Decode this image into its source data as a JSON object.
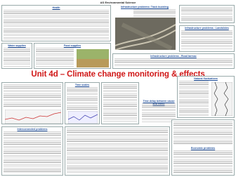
{
  "header": {
    "title": "AS Environmental Science"
  },
  "title": "Unit 4d – Climate change monitoring & effects",
  "sections": [
    {
      "heading": "Health"
    },
    {
      "heading": "Infrastructure problems: Track buckling"
    },
    {
      "heading": "Infrastructure problems : Landslides"
    },
    {
      "heading": "Water supplies"
    },
    {
      "heading": "Food supplies"
    },
    {
      "heading": "Infrastructure problems - Road tarmac"
    },
    {
      "heading": "Time scales"
    },
    {
      "heading": "Natural fluctuations"
    },
    {
      "heading": "Time delay between cause and effect"
    },
    {
      "heading": "Interconnected problems"
    },
    {
      "heading": "Economic problems"
    }
  ]
}
